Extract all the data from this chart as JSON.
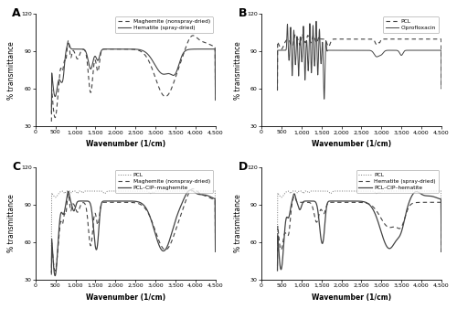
{
  "title_A": "A",
  "title_B": "B",
  "title_C": "C",
  "title_D": "D",
  "xlabel": "Wavenumber (1/cm)",
  "ylabel": "% transmittance",
  "xlim": [
    0,
    4500
  ],
  "ylim": [
    30,
    120
  ],
  "xticks": [
    0,
    500,
    1000,
    1500,
    2000,
    2500,
    3000,
    3500,
    4000,
    4500
  ],
  "yticks": [
    30,
    60,
    90,
    120
  ],
  "xticklabels": [
    "0",
    "500",
    "1,000",
    "1,500",
    "2,000",
    "2,500",
    "3,000",
    "3,500",
    "4,000",
    "4,500"
  ],
  "legend_A": [
    "Maghemite (nonspray-dried)",
    "Hematite (spray-dried)"
  ],
  "legend_B": [
    "PCL",
    "Ciprofloxacin"
  ],
  "legend_C": [
    "PCL",
    "Maghemite (nonspray-dried)",
    "PCL–CIP–maghemite"
  ],
  "legend_D": [
    "PCL",
    "Hematite (spray-dried)",
    "PCL–CIP–hematite"
  ],
  "color_dark": "#444444",
  "color_medium": "#777777",
  "background": "#ffffff"
}
